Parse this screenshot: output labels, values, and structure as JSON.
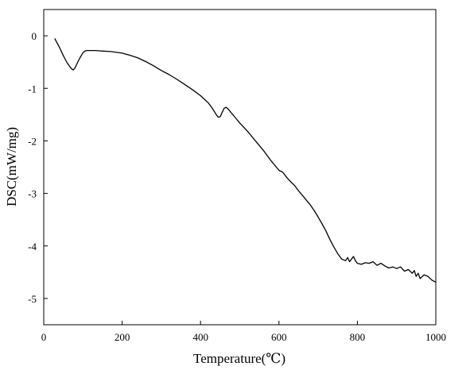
{
  "chart_data": {
    "type": "line",
    "title": "",
    "xlabel": "Temperature(℃)",
    "ylabel": "DSC(mW/mg)",
    "xlim": [
      0,
      1000
    ],
    "ylim": [
      -5.5,
      0.5
    ],
    "xticks": [
      0,
      200,
      400,
      600,
      800,
      1000
    ],
    "yticks": [
      0,
      -1,
      -2,
      -3,
      -4,
      -5
    ],
    "xtick_labels": [
      "0",
      "200",
      "400",
      "600",
      "800",
      "1000"
    ],
    "ytick_labels": [
      "0",
      "-1",
      "-2",
      "-3",
      "-4",
      "-5"
    ],
    "grid": false,
    "legend": "none",
    "line_color": "#000000",
    "series": [
      {
        "x": [
          28,
          40,
          50,
          60,
          70,
          75,
          80,
          90,
          100,
          105,
          110,
          130,
          150,
          170,
          200,
          220,
          240,
          260,
          280,
          300,
          320,
          340,
          360,
          380,
          400,
          420,
          430,
          440,
          445,
          450,
          455,
          460,
          465,
          470,
          480,
          490,
          500,
          520,
          540,
          560,
          580,
          600,
          610,
          620,
          630,
          640,
          650,
          660,
          670,
          680,
          690,
          700,
          710,
          720,
          730,
          740,
          750,
          760,
          770,
          775,
          780,
          785,
          790,
          795,
          800,
          810,
          820,
          830,
          840,
          850,
          860,
          870,
          880,
          890,
          900,
          910,
          920,
          930,
          940,
          945,
          950,
          955,
          960,
          970,
          980,
          990,
          1000
        ],
        "y": [
          -0.05,
          -0.22,
          -0.38,
          -0.52,
          -0.62,
          -0.65,
          -0.61,
          -0.45,
          -0.32,
          -0.29,
          -0.28,
          -0.28,
          -0.29,
          -0.3,
          -0.33,
          -0.37,
          -0.42,
          -0.49,
          -0.57,
          -0.66,
          -0.74,
          -0.83,
          -0.93,
          -1.03,
          -1.14,
          -1.28,
          -1.38,
          -1.5,
          -1.55,
          -1.54,
          -1.46,
          -1.38,
          -1.36,
          -1.39,
          -1.48,
          -1.57,
          -1.66,
          -1.82,
          -2.0,
          -2.18,
          -2.38,
          -2.56,
          -2.6,
          -2.7,
          -2.78,
          -2.85,
          -2.95,
          -3.04,
          -3.13,
          -3.22,
          -3.33,
          -3.45,
          -3.58,
          -3.72,
          -3.88,
          -4.02,
          -4.15,
          -4.25,
          -4.28,
          -4.22,
          -4.3,
          -4.25,
          -4.2,
          -4.28,
          -4.33,
          -4.35,
          -4.32,
          -4.33,
          -4.3,
          -4.37,
          -4.33,
          -4.38,
          -4.42,
          -4.4,
          -4.43,
          -4.4,
          -4.48,
          -4.45,
          -4.52,
          -4.47,
          -4.58,
          -4.52,
          -4.62,
          -4.55,
          -4.58,
          -4.65,
          -4.69
        ]
      }
    ]
  }
}
